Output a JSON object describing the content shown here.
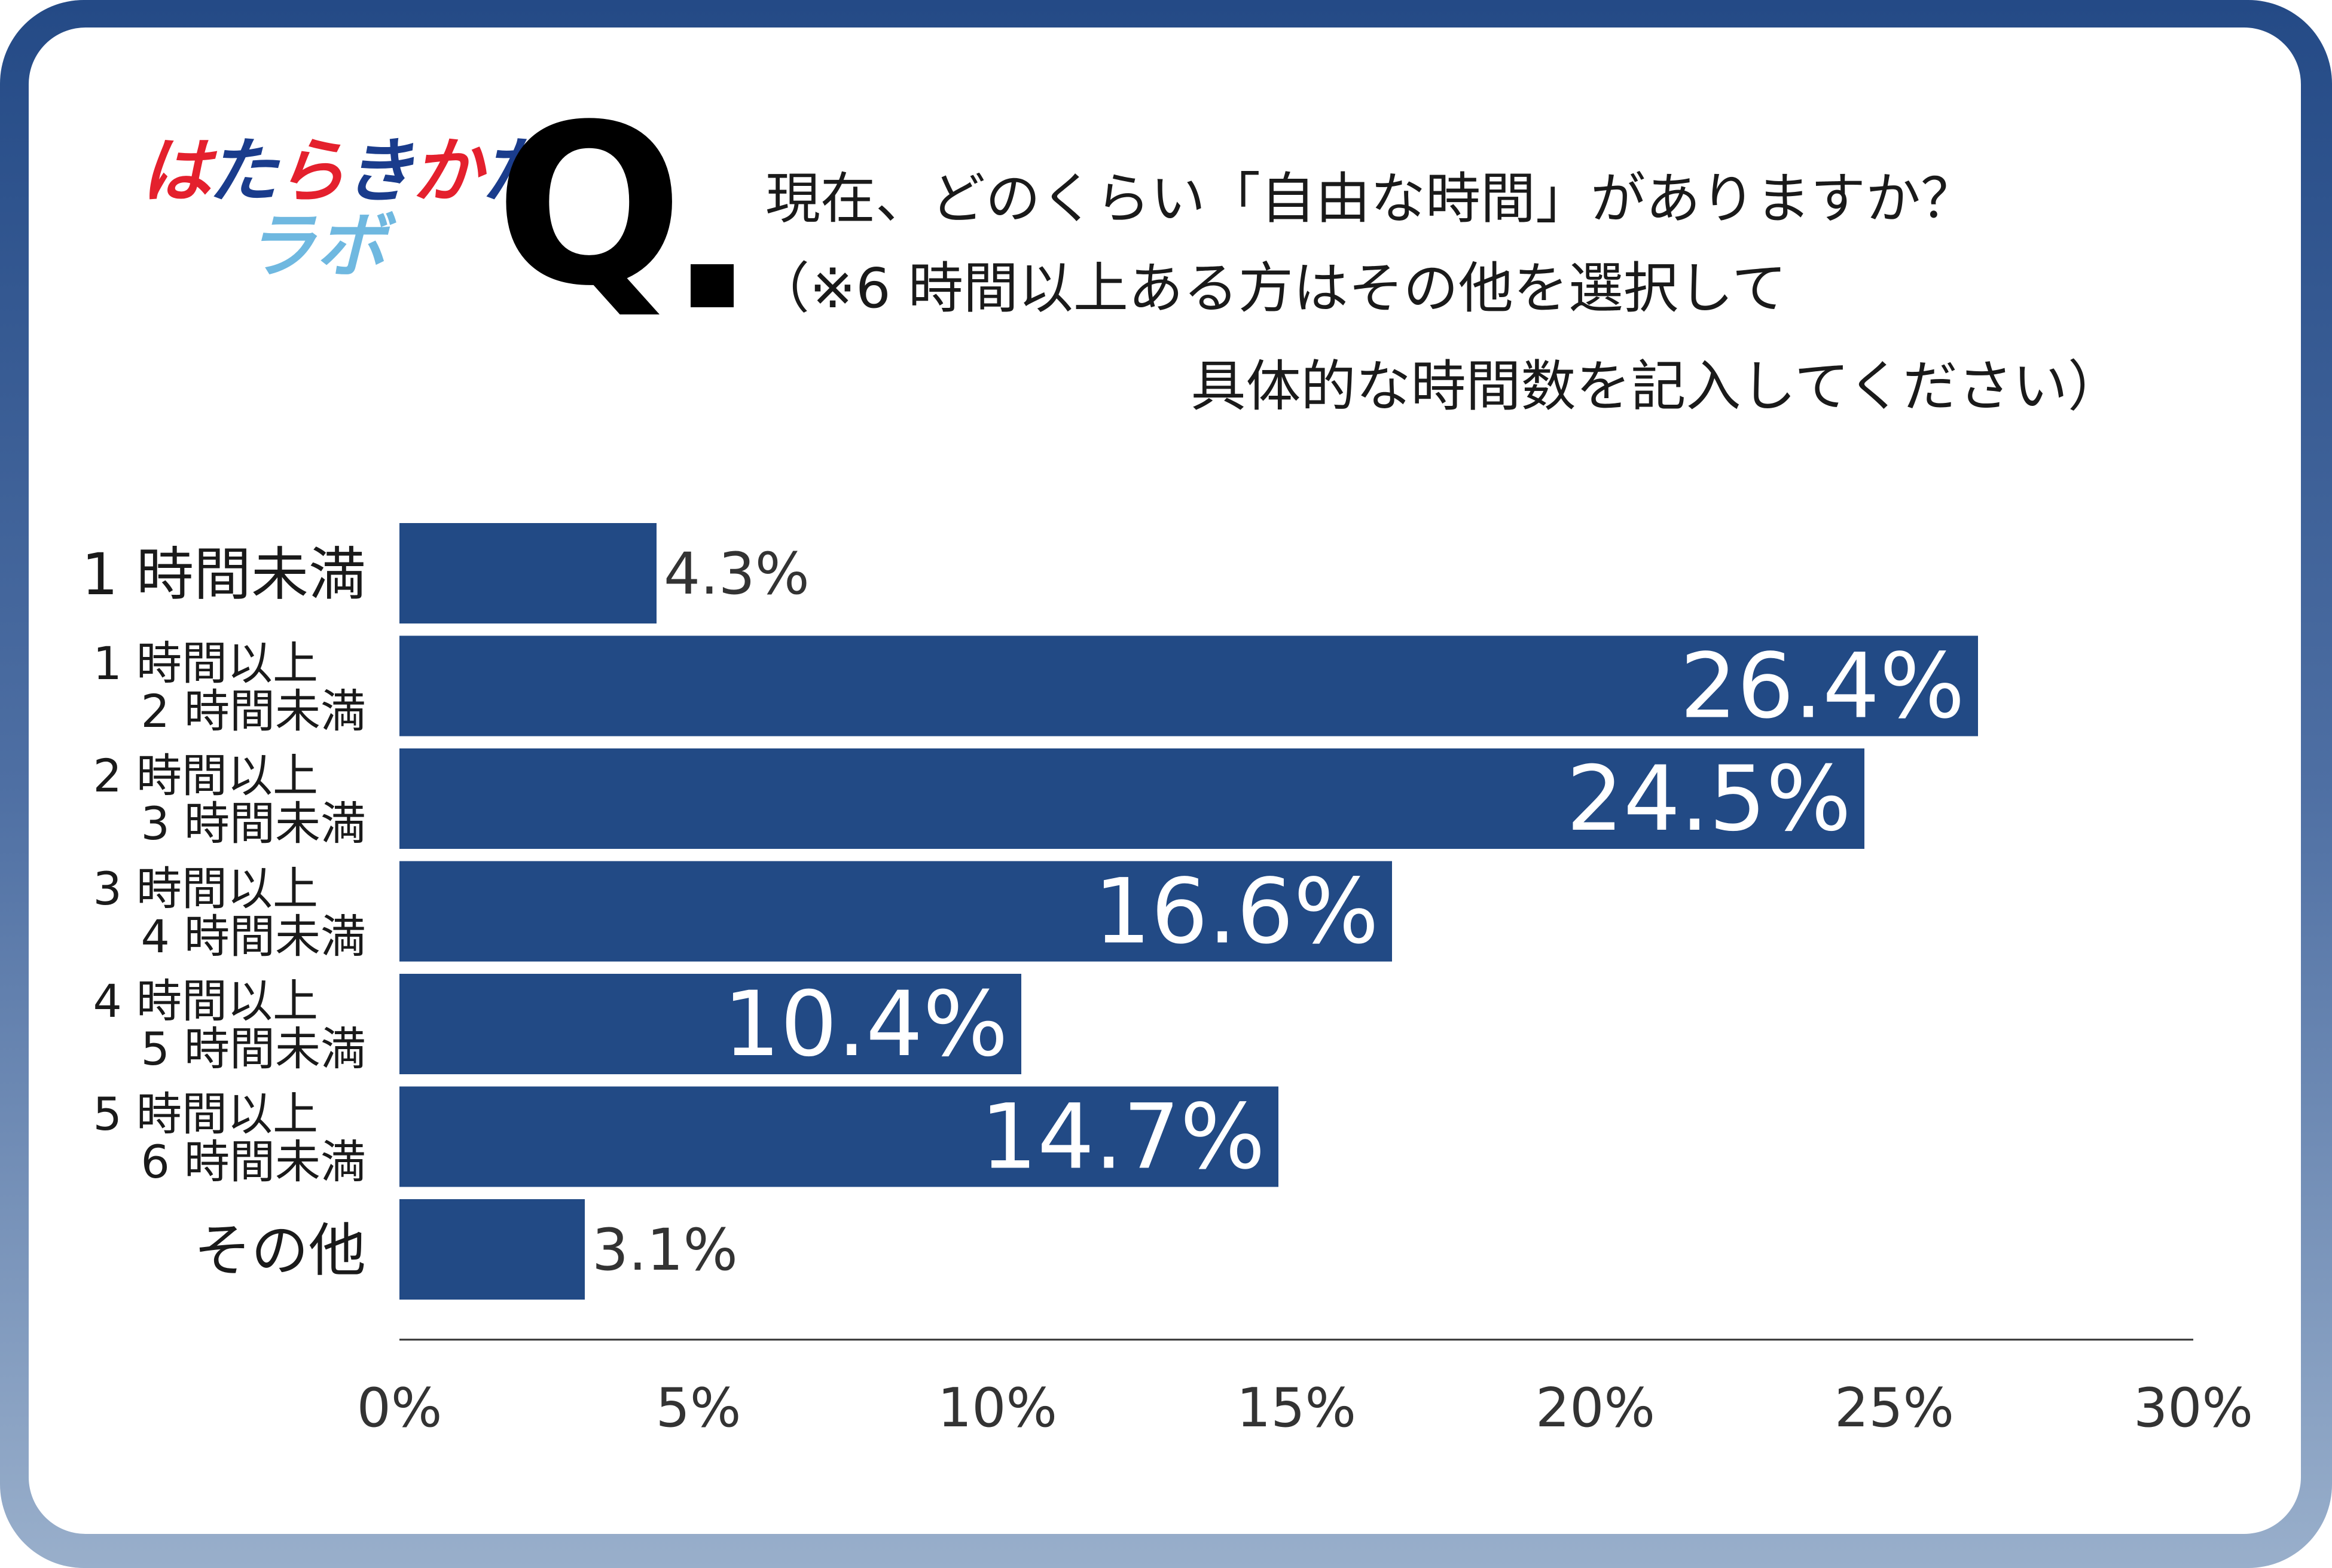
{
  "logo": {
    "line1_parts": [
      {
        "text": "は",
        "color": "#e4202d"
      },
      {
        "text": "た",
        "color": "#1a3c8c"
      },
      {
        "text": "ら",
        "color": "#e4202d"
      },
      {
        "text": "き",
        "color": "#1a3c8c"
      },
      {
        "text": "か",
        "color": "#e4202d"
      },
      {
        "text": "た",
        "color": "#1a3c8c"
      }
    ],
    "line2": "ラボ"
  },
  "question": {
    "mark": "Q",
    "line1": "現在、どのくらい「自由な時間」がありますか？",
    "line2": "（※6 時間以上ある方はその他を選択して",
    "line3": "具体的な時間数を記入してください）"
  },
  "colors": {
    "bar": "#224a85",
    "frame_top": "#244a86",
    "frame_bottom": "#99afcb",
    "axis": "#333333"
  },
  "chart_data": {
    "type": "bar",
    "orientation": "horizontal",
    "categories": [
      [
        "1 時間未満"
      ],
      [
        "1 時間以上",
        "2 時間未満"
      ],
      [
        "2 時間以上",
        "3 時間未満"
      ],
      [
        "3 時間以上",
        "4 時間未満"
      ],
      [
        "4 時間以上",
        "5 時間未満"
      ],
      [
        "5 時間以上",
        "6 時間未満"
      ],
      [
        "その他"
      ]
    ],
    "values": [
      4.3,
      26.4,
      24.5,
      16.6,
      10.4,
      14.7,
      3.1
    ],
    "value_labels": [
      "4.3%",
      "26.4%",
      "24.5%",
      "16.6%",
      "10.4%",
      "14.7%",
      "3.1%"
    ],
    "x_ticks": [
      0,
      5,
      10,
      15,
      20,
      25,
      30
    ],
    "x_tick_labels": [
      "0%",
      "5%",
      "10%",
      "15%",
      "20%",
      "25%",
      "30%"
    ],
    "xlim": [
      0,
      30
    ],
    "grid": false,
    "legend": "none"
  }
}
